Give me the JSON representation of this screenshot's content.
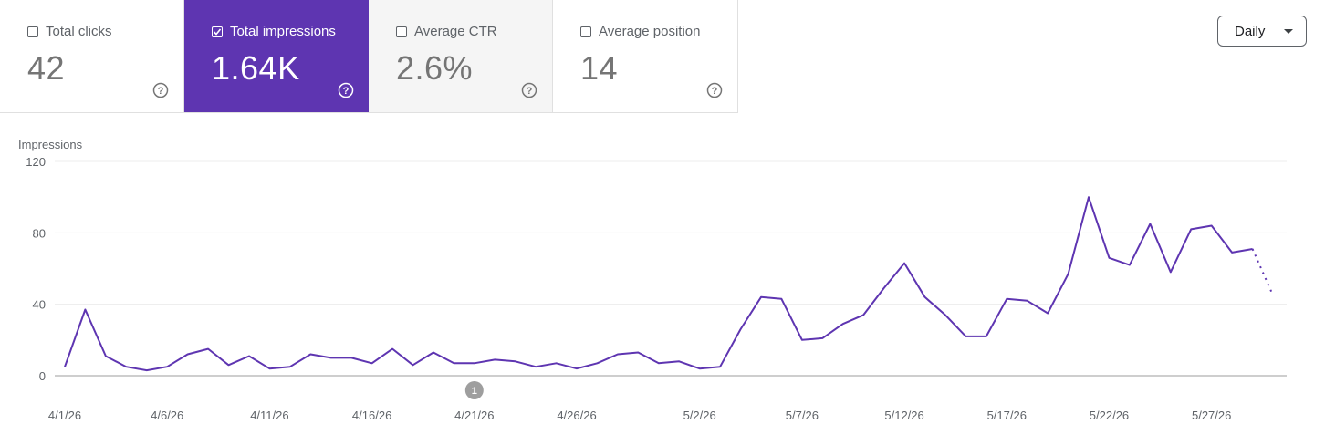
{
  "metrics": [
    {
      "label": "Total clicks",
      "value": "42",
      "selected": false
    },
    {
      "label": "Total impressions",
      "value": "1.64K",
      "selected": true
    },
    {
      "label": "Average CTR",
      "value": "2.6%",
      "selected": false
    },
    {
      "label": "Average position",
      "value": "14",
      "selected": false
    }
  ],
  "granularity": {
    "selected": "Daily"
  },
  "annotation": {
    "label": "1",
    "date": "4/21/26"
  },
  "colors": {
    "accent": "#5e35b1",
    "line": "#5e35b1"
  },
  "chart_data": {
    "type": "line",
    "ylabel": "Impressions",
    "ylim": [
      0,
      120
    ],
    "yticks": [
      0,
      40,
      80,
      120
    ],
    "x_tick_labels": [
      "4/1/26",
      "4/6/26",
      "4/11/26",
      "4/16/26",
      "4/21/26",
      "4/26/26",
      "5/2/26",
      "5/7/26",
      "5/12/26",
      "5/17/26",
      "5/22/26",
      "5/27/26"
    ],
    "x_tick_index": [
      0,
      5,
      10,
      15,
      20,
      25,
      31,
      36,
      41,
      46,
      51,
      56
    ],
    "grid": true,
    "partial_last_point": true,
    "series": [
      {
        "values": [
          5,
          37,
          11,
          5,
          3,
          5,
          12,
          15,
          6,
          11,
          4,
          5,
          12,
          10,
          10,
          7,
          15,
          6,
          13,
          7,
          7,
          9,
          8,
          5,
          7,
          4,
          7,
          12,
          13,
          7,
          8,
          4,
          5,
          26,
          44,
          43,
          20,
          21,
          29,
          34,
          49,
          63,
          44,
          34,
          22,
          22,
          43,
          42,
          35,
          57,
          100,
          66,
          62,
          85,
          58,
          82,
          84,
          69,
          71,
          45
        ]
      }
    ]
  }
}
